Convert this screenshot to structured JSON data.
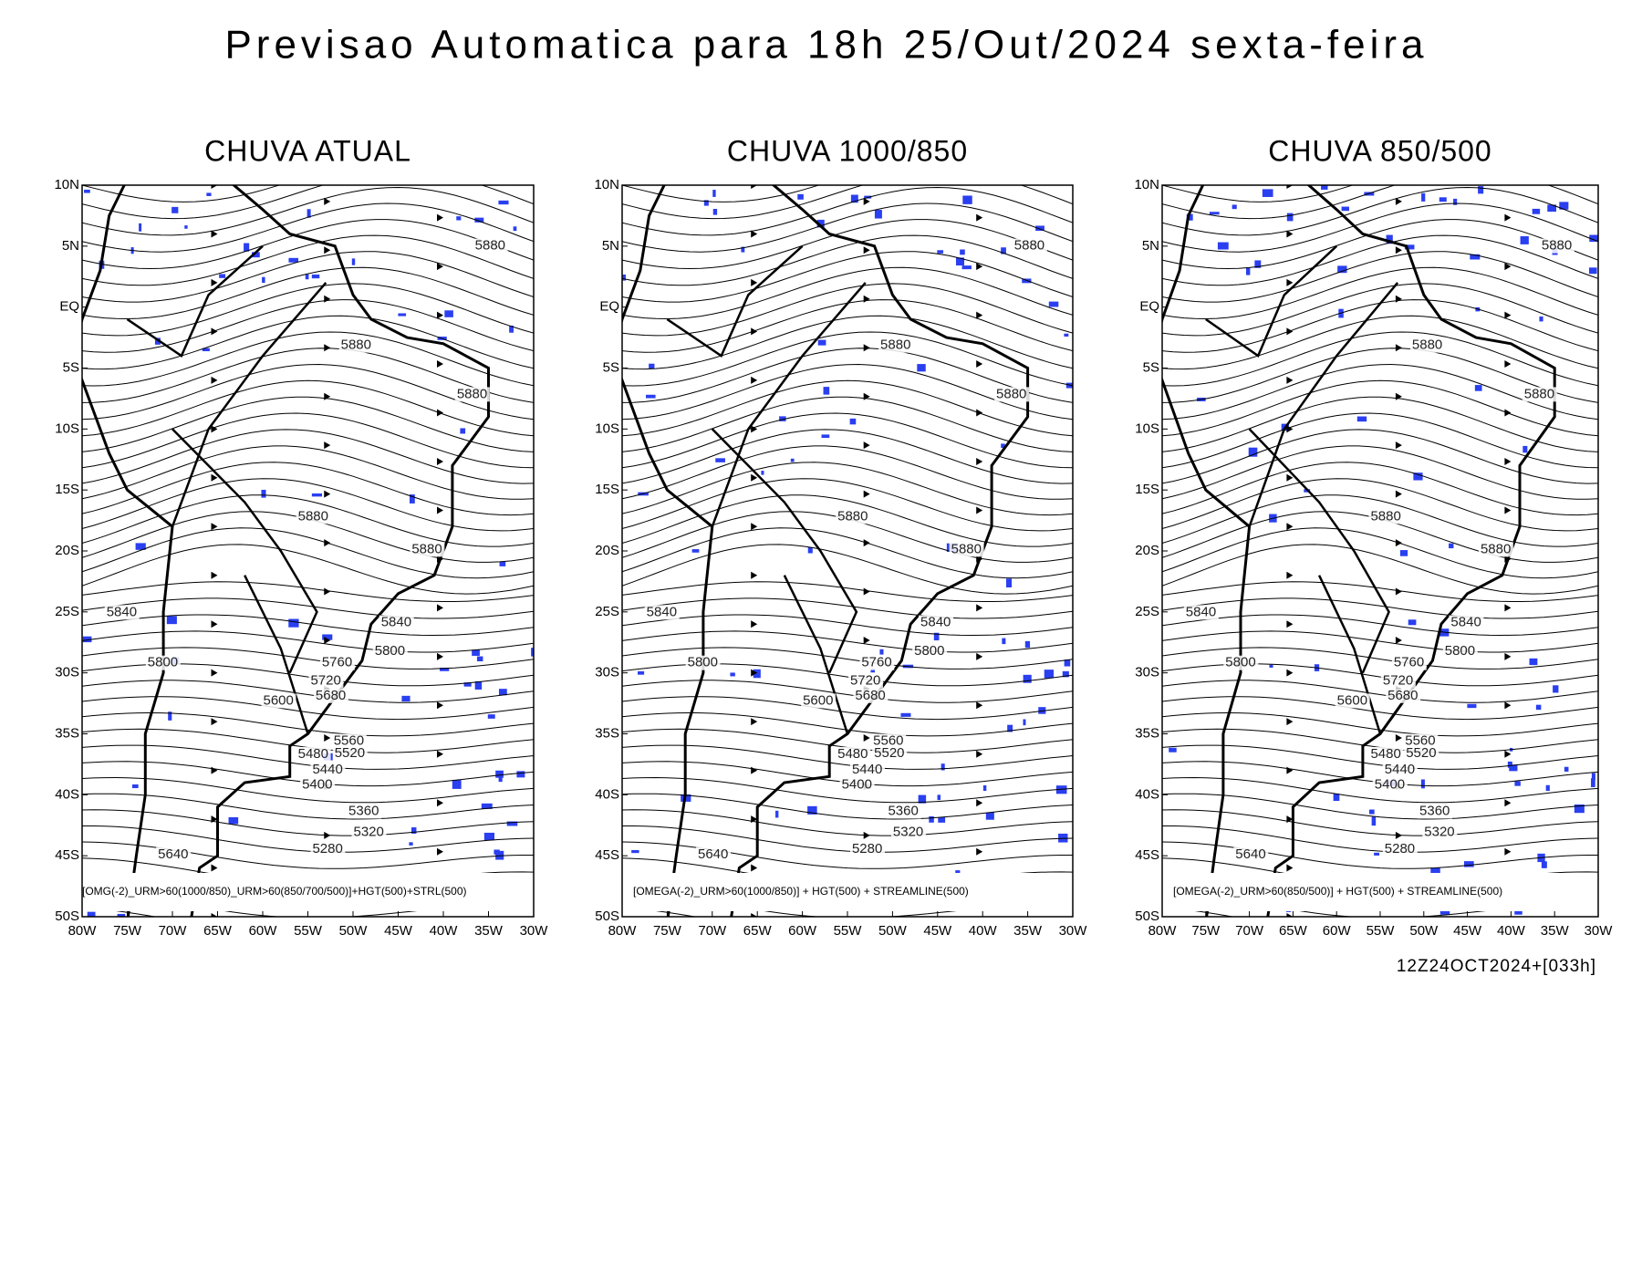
{
  "header": {
    "title": "Previsao Automatica para 18h 25/Out/2024 sexta-feira"
  },
  "panels": [
    {
      "title": "CHUVA ATUAL",
      "caption": "[OMG(-2)_URM>60(1000/850)_URM>60(850/700/500)]+HGT(500)+STRL(500)"
    },
    {
      "title": "CHUVA 1000/850",
      "caption": "[OMEGA(-2)_URM>60(1000/850)] + HGT(500) + STREAMLINE(500)"
    },
    {
      "title": "CHUVA 850/500",
      "caption": "[OMEGA(-2)_URM>60(850/500)] + HGT(500) + STREAMLINE(500)"
    }
  ],
  "lat_labels": [
    "10N",
    "5N",
    "EQ",
    "5S",
    "10S",
    "15S",
    "20S",
    "25S",
    "30S",
    "35S",
    "40S",
    "45S",
    "50S"
  ],
  "lon_labels": [
    "80W",
    "75W",
    "70W",
    "65W",
    "60W",
    "55W",
    "50W",
    "45W",
    "40W",
    "35W",
    "30W"
  ],
  "contour_labels": [
    "5880",
    "5880",
    "5880",
    "5880",
    "5880",
    "5840",
    "5840",
    "5800",
    "5800",
    "5760",
    "5720",
    "5680",
    "5600",
    "5560",
    "5480",
    "5520",
    "5440",
    "5400",
    "5360",
    "5320",
    "5280",
    "5640"
  ],
  "footer": "12Z24OCT2024+[033h]"
}
